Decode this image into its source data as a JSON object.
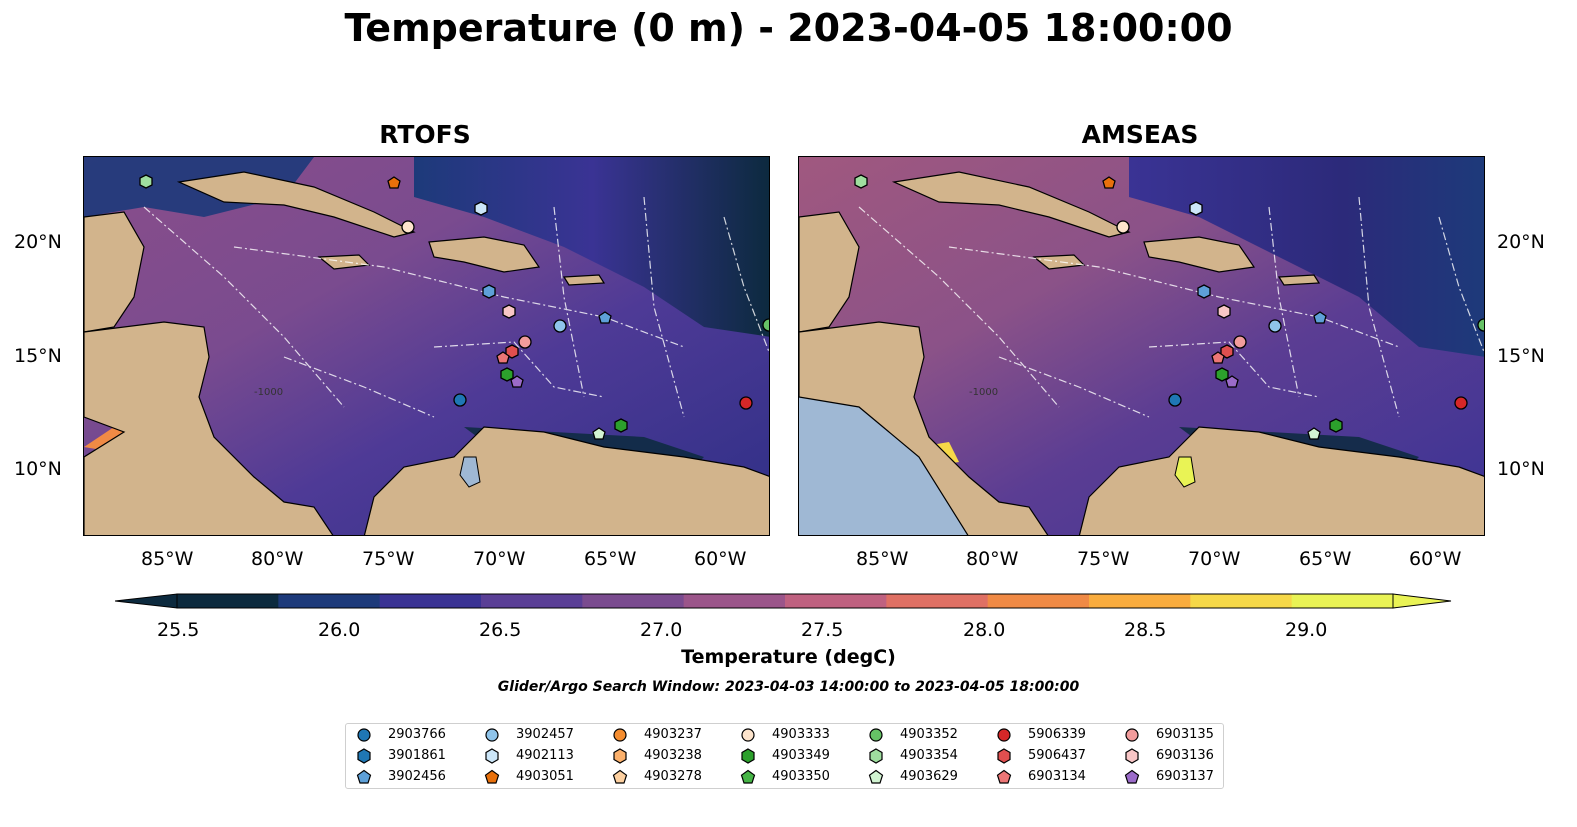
{
  "title": "Temperature (0 m) - 2023-04-05 18:00:00",
  "panels": [
    {
      "title": "RTOFS"
    },
    {
      "title": "AMSEAS"
    }
  ],
  "lon_ticks": [
    "85°W",
    "80°W",
    "75°W",
    "70°W",
    "65°W",
    "60°W"
  ],
  "lat_ticks": [
    "20°N",
    "15°N",
    "10°N"
  ],
  "contour_label": "-1000",
  "colorbar": {
    "label": "Temperature (degC)",
    "ticks": [
      "25.5",
      "26.0",
      "26.5",
      "27.0",
      "27.5",
      "28.0",
      "28.5",
      "29.0"
    ],
    "colors": [
      "#0c2a3e",
      "#1d3a7a",
      "#3a3394",
      "#5a3f96",
      "#7a4b8f",
      "#9b558a",
      "#bf6180",
      "#df7064",
      "#f08a45",
      "#f9ac3e",
      "#f6d848",
      "#e9f355"
    ],
    "extend": "both"
  },
  "search_window": "Glider/Argo Search Window: 2023-04-03 14:00:00 to 2023-04-05 18:00:00",
  "colors": {
    "land": "#d2b48c",
    "lakes": "#9fb8d4",
    "ocean_deep": "#2c2a7a",
    "ocean_mid": "#5b3d93",
    "ocean_warm": "#a0587f"
  },
  "legend": [
    {
      "id": "2903766",
      "shape": "circle",
      "color": "#1f77b4"
    },
    {
      "id": "3901861",
      "shape": "hexagon",
      "color": "#1f77b4"
    },
    {
      "id": "3902456",
      "shape": "pentagon",
      "color": "#5ea0d8"
    },
    {
      "id": "3902457",
      "shape": "circle",
      "color": "#8fc4ea"
    },
    {
      "id": "4902113",
      "shape": "hexagon",
      "color": "#cce6f8"
    },
    {
      "id": "4903051",
      "shape": "pentagon",
      "color": "#e8700b"
    },
    {
      "id": "4903237",
      "shape": "circle",
      "color": "#f58d2f"
    },
    {
      "id": "4903238",
      "shape": "hexagon",
      "color": "#fbb06b"
    },
    {
      "id": "4903278",
      "shape": "pentagon",
      "color": "#fdd0a0"
    },
    {
      "id": "4903333",
      "shape": "circle",
      "color": "#fde4cc"
    },
    {
      "id": "4903349",
      "shape": "hexagon",
      "color": "#2ca02c"
    },
    {
      "id": "4903350",
      "shape": "pentagon",
      "color": "#46b446"
    },
    {
      "id": "4903352",
      "shape": "circle",
      "color": "#66c266"
    },
    {
      "id": "4903354",
      "shape": "hexagon",
      "color": "#9fde9f"
    },
    {
      "id": "4903629",
      "shape": "pentagon",
      "color": "#d2f4d2"
    },
    {
      "id": "5906339",
      "shape": "circle",
      "color": "#d62728"
    },
    {
      "id": "5906437",
      "shape": "hexagon",
      "color": "#e04f4f"
    },
    {
      "id": "6903134",
      "shape": "pentagon",
      "color": "#ec7676"
    },
    {
      "id": "6903135",
      "shape": "circle",
      "color": "#f29c9c"
    },
    {
      "id": "6903136",
      "shape": "hexagon",
      "color": "#f8c6c6"
    },
    {
      "id": "6903137",
      "shape": "pentagon",
      "color": "#9b6bc9"
    }
  ]
}
